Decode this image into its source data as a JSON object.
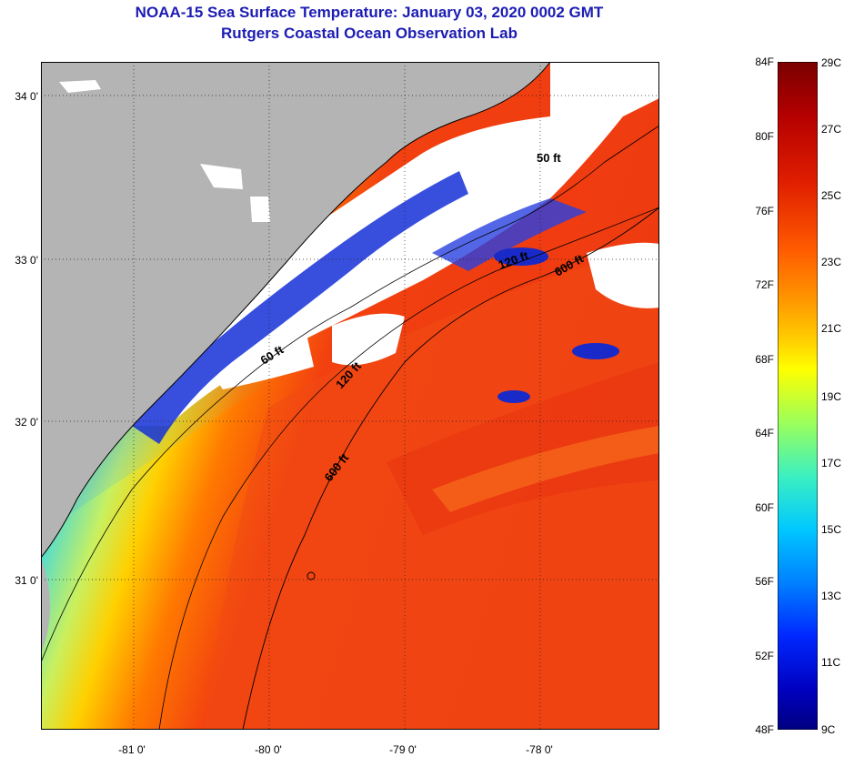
{
  "title": {
    "line1": "NOAA-15 Sea Surface Temperature:  January 03, 2020 0002 GMT",
    "line2": "Rutgers Coastal Ocean Observation Lab"
  },
  "map": {
    "lat_labels": [
      "34 0'",
      "33 0'",
      "32 0'",
      "31 0'"
    ],
    "lon_labels": [
      "-81 0'",
      "-80 0'",
      "-79 0'",
      "-78 0'"
    ],
    "contour_labels": [
      "50 ft",
      "60 ft",
      "120 ft",
      "120 ft",
      "600 ft",
      "600 ft"
    ],
    "colors": {
      "land": "#b4b4b4",
      "no_data": "#ffffff",
      "cold": "#1a2fd0",
      "warm": "#ee3a10"
    }
  },
  "colorbar": {
    "fahrenheit": [
      "84F",
      "80F",
      "76F",
      "72F",
      "68F",
      "64F",
      "60F",
      "56F",
      "52F",
      "48F"
    ],
    "celsius": [
      "29C",
      "27C",
      "25C",
      "23C",
      "21C",
      "19C",
      "17C",
      "15C",
      "13C",
      "11C",
      "9C"
    ],
    "colors": [
      "#7a0000",
      "#b40000",
      "#e01e00",
      "#ff5a00",
      "#ff9a00",
      "#ffd200",
      "#ffff00",
      "#9cff5a",
      "#3cf0c0",
      "#00c8ff",
      "#0080ff",
      "#0028ff",
      "#0000c0",
      "#000080"
    ]
  }
}
